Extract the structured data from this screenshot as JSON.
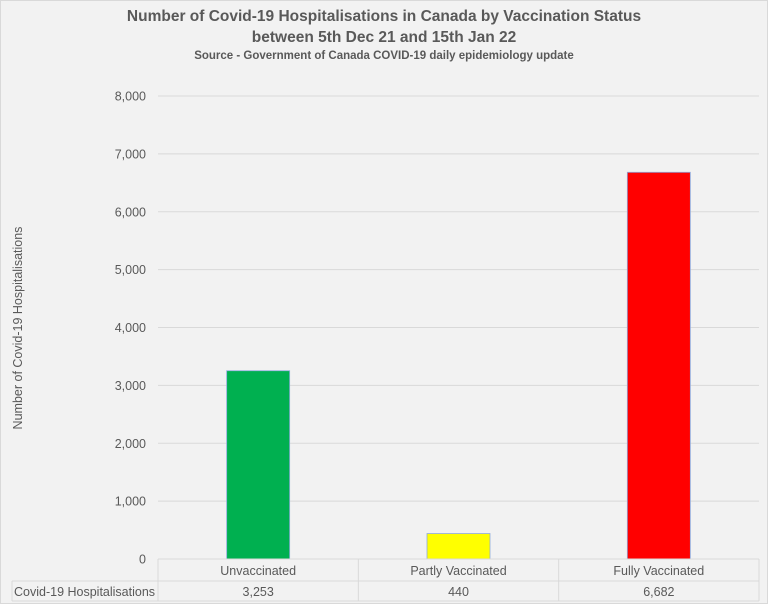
{
  "chart_data": {
    "type": "bar",
    "title": "Number of Covid-19 Hospitalisations in Canada by Vaccination Status",
    "subtitle": "between 5th Dec 21 and 15th Jan 22",
    "source": "Source - Government of Canada COVID-19 daily epidemiology update",
    "xlabel": "",
    "ylabel": "Number of Covid-19 Hospitalisations",
    "ylim": [
      0,
      8000
    ],
    "yticks": [
      0,
      1000,
      2000,
      3000,
      4000,
      5000,
      6000,
      7000,
      8000
    ],
    "ytick_labels": [
      "0",
      "1,000",
      "2,000",
      "3,000",
      "4,000",
      "5,000",
      "6,000",
      "7,000",
      "8,000"
    ],
    "grid": true,
    "categories": [
      "Unvaccinated",
      "Partly Vaccinated",
      "Fully Vaccinated"
    ],
    "series": [
      {
        "name": "Covid-19 Hospitalisations",
        "values": [
          3253,
          440,
          6682
        ],
        "value_labels": [
          "3,253",
          "440",
          "6,682"
        ],
        "colors": [
          "#00b050",
          "#ffff00",
          "#ff0000"
        ]
      }
    ],
    "data_table": true
  }
}
